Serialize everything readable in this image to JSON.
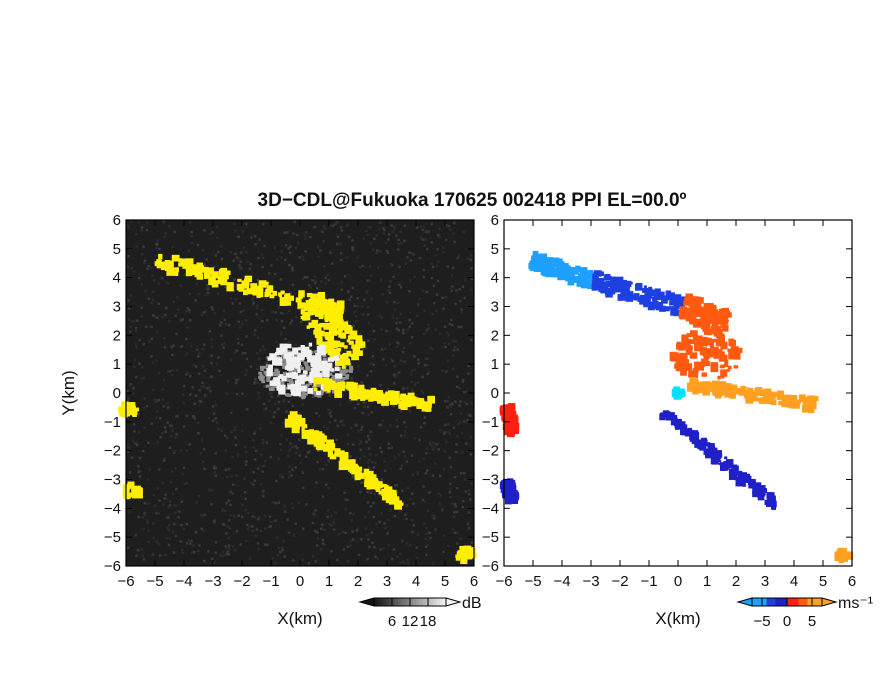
{
  "title": "3D−CDL@Fukuoka 170625 002418 PPI EL=00.0º",
  "chart_data": [
    {
      "type": "heatmap",
      "panel": "left",
      "quantity": "backscatter intensity",
      "xlabel": "X(km)",
      "ylabel": "Y(km)",
      "xlim": [
        -6,
        6
      ],
      "ylim": [
        -6,
        6
      ],
      "x_ticks": [
        "−6",
        "−5",
        "−4",
        "−3",
        "−2",
        "−1",
        "0",
        "1",
        "2",
        "3",
        "4",
        "5",
        "6"
      ],
      "y_ticks": [
        "6",
        "5",
        "4",
        "3",
        "2",
        "1",
        "0",
        "−1",
        "−2",
        "−3",
        "−4",
        "−5",
        "−6"
      ],
      "colorbar": {
        "ticks": [
          "6",
          "12",
          "18"
        ],
        "tick_values": [
          6,
          12,
          18
        ],
        "range": [
          0,
          24
        ],
        "unit": "dB"
      },
      "colors": {
        "background": "#1e1e1e",
        "noise": "#3a3a3a",
        "mid": "#8c8c8c",
        "high": "#f0f0f0",
        "saturated": "#ffee00"
      },
      "regions": [
        {
          "kind": "band",
          "from": [
            -4.9,
            4.6
          ],
          "to": [
            1.5,
            2.8
          ],
          "width_km": 0.5,
          "color": "saturated"
        },
        {
          "kind": "band",
          "from": [
            0.3,
            3.1
          ],
          "to": [
            1.9,
            1.2
          ],
          "width_km": 1.1,
          "color": "saturated"
        },
        {
          "kind": "blob",
          "center": [
            0.1,
            0.8
          ],
          "radius_km": 1.3,
          "color": "high"
        },
        {
          "kind": "band",
          "from": [
            0.5,
            0.3
          ],
          "to": [
            4.5,
            -0.4
          ],
          "width_km": 0.35,
          "color": "saturated"
        },
        {
          "kind": "band",
          "from": [
            -0.4,
            -0.8
          ],
          "to": [
            3.5,
            -3.9
          ],
          "width_km": 0.35,
          "color": "saturated"
        },
        {
          "kind": "blob",
          "center": [
            -5.9,
            -0.6
          ],
          "radius_km": 0.3,
          "color": "saturated"
        },
        {
          "kind": "blob",
          "center": [
            -5.8,
            -3.4
          ],
          "radius_km": 0.3,
          "color": "saturated"
        },
        {
          "kind": "blob",
          "center": [
            5.7,
            -5.6
          ],
          "radius_km": 0.3,
          "color": "saturated"
        }
      ]
    },
    {
      "type": "heatmap",
      "panel": "right",
      "quantity": "radial velocity",
      "xlabel": "X(km)",
      "ylabel": "",
      "xlim": [
        -6,
        6
      ],
      "ylim": [
        -6,
        6
      ],
      "x_ticks": [
        "−6",
        "−5",
        "−4",
        "−3",
        "−2",
        "−1",
        "0",
        "1",
        "2",
        "3",
        "4",
        "5",
        "6"
      ],
      "y_ticks": [
        "6",
        "5",
        "4",
        "3",
        "2",
        "1",
        "0",
        "−1",
        "−2",
        "−3",
        "−4",
        "−5",
        "−6"
      ],
      "colorbar": {
        "ticks": [
          "−5",
          "0",
          "5"
        ],
        "tick_values": [
          -5,
          0,
          5
        ],
        "range": [
          -7,
          7
        ],
        "unit": "ms⁻¹"
      },
      "colors": {
        "background": "#ffffff",
        "v_minus_6": "#1ea0ff",
        "v_minus_3": "#1e40e0",
        "v_minus_1": "#2020c8",
        "v_plus_1": "#ff2010",
        "v_plus_3": "#ff5a10",
        "v_plus_6": "#ffa020",
        "origin": "#00e0ff"
      },
      "regions": [
        {
          "kind": "band",
          "from": [
            -5.0,
            4.6
          ],
          "to": [
            -2.9,
            3.9
          ],
          "width_km": 0.5,
          "velocity": -6
        },
        {
          "kind": "band",
          "from": [
            -2.9,
            3.9
          ],
          "to": [
            0.2,
            3.0
          ],
          "width_km": 0.6,
          "velocity": -3
        },
        {
          "kind": "band",
          "from": [
            0.2,
            3.0
          ],
          "to": [
            1.7,
            2.4
          ],
          "width_km": 0.9,
          "velocity": 3
        },
        {
          "kind": "blob",
          "center": [
            1.0,
            1.3
          ],
          "radius_km": 1.2,
          "velocity": 3
        },
        {
          "kind": "band",
          "from": [
            0.4,
            0.3
          ],
          "to": [
            4.7,
            -0.4
          ],
          "width_km": 0.35,
          "velocity": 6
        },
        {
          "kind": "band",
          "from": [
            -0.5,
            -0.7
          ],
          "to": [
            3.4,
            -3.9
          ],
          "width_km": 0.35,
          "velocity": -1
        },
        {
          "kind": "band",
          "from": [
            -5.9,
            -0.5
          ],
          "to": [
            -5.7,
            -1.4
          ],
          "width_km": 0.35,
          "velocity": 1
        },
        {
          "kind": "band",
          "from": [
            -5.9,
            -3.1
          ],
          "to": [
            -5.7,
            -3.7
          ],
          "width_km": 0.3,
          "velocity": -1
        },
        {
          "kind": "blob",
          "center": [
            5.7,
            -5.6
          ],
          "radius_km": 0.25,
          "velocity": 6
        },
        {
          "kind": "blob",
          "center": [
            0.0,
            0.0
          ],
          "radius_km": 0.18,
          "velocity": "origin"
        }
      ]
    }
  ]
}
